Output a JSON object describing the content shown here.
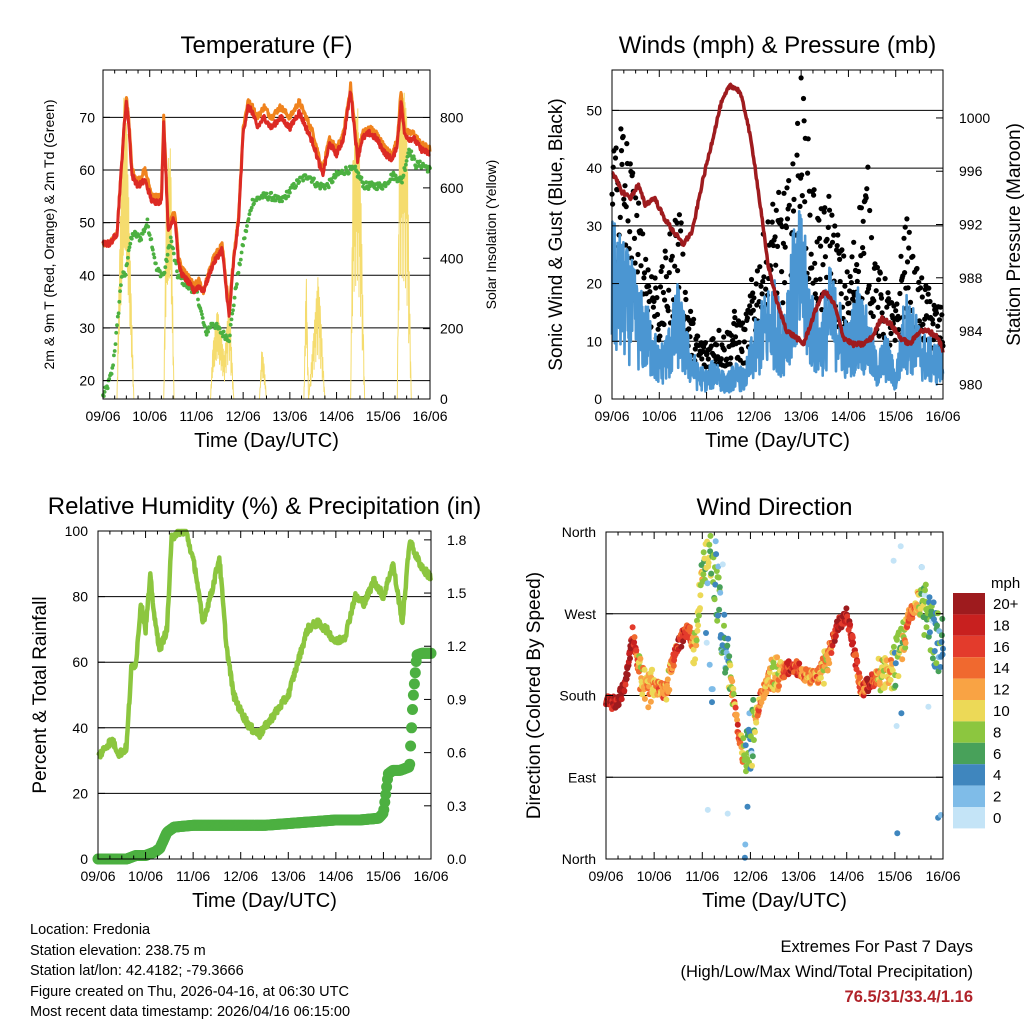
{
  "chart_data": [
    {
      "type": "line",
      "title": "Temperature (F)",
      "xlabel": "Time (Day/UTC)",
      "ylabel": "2m & 9m T (Red, Orange) & 2m Td (Green)",
      "ylabel_right": "Solar Insolation (Yellow)",
      "x_ticks": [
        "09/06",
        "10/06",
        "11/06",
        "12/06",
        "13/06",
        "14/06",
        "15/06",
        "16/06"
      ],
      "xlim": [
        0,
        7
      ],
      "ylim": [
        16.5,
        79
      ],
      "yticks": [
        20,
        30,
        40,
        50,
        60,
        70
      ],
      "ylim_right": [
        0,
        935
      ],
      "yticks_right": [
        0,
        200,
        400,
        600,
        800
      ],
      "colors": {
        "t2m": "#dc2a24",
        "t9m": "#f0831e",
        "td": "#4cb041",
        "solar": "#f5dc6e"
      },
      "series": [
        {
          "name": "2m T",
          "x": [
            0,
            0.15,
            0.3,
            0.45,
            0.5,
            0.55,
            0.62,
            0.75,
            0.9,
            1.05,
            1.25,
            1.3,
            1.4,
            1.5,
            1.55,
            1.62,
            1.7,
            1.8,
            1.95,
            2.05,
            2.15,
            2.35,
            2.55,
            2.7,
            2.8,
            2.9,
            3.0,
            3.1,
            3.2,
            3.3,
            3.45,
            3.6,
            3.8,
            4.0,
            4.2,
            4.3,
            4.5,
            4.7,
            4.85,
            5.0,
            5.15,
            5.3,
            5.45,
            5.55,
            5.7,
            5.85,
            6.05,
            6.2,
            6.3,
            6.38,
            6.45,
            6.55,
            6.65,
            6.8,
            7.0
          ],
          "values": [
            46,
            46,
            48,
            68,
            73,
            69,
            59,
            57,
            58,
            54,
            54,
            69,
            48,
            51,
            50,
            42,
            40,
            39,
            37,
            38,
            37,
            42,
            45,
            32,
            43,
            50,
            67,
            72,
            71,
            68,
            70,
            68,
            70,
            68,
            71,
            69,
            65,
            59,
            65,
            63,
            66,
            75,
            62,
            66,
            67,
            66,
            63,
            62,
            65,
            73,
            67,
            66,
            66,
            64,
            63
          ]
        },
        {
          "name": "9m T",
          "x": [
            0,
            0.15,
            0.3,
            0.45,
            0.5,
            0.55,
            0.62,
            0.75,
            0.9,
            1.05,
            1.25,
            1.3,
            1.4,
            1.5,
            1.55,
            1.62,
            1.7,
            1.8,
            1.95,
            2.05,
            2.15,
            2.35,
            2.55,
            2.7,
            2.8,
            2.9,
            3.0,
            3.1,
            3.2,
            3.3,
            3.45,
            3.6,
            3.8,
            4.0,
            4.2,
            4.3,
            4.5,
            4.7,
            4.85,
            5.0,
            5.15,
            5.3,
            5.45,
            5.55,
            5.7,
            5.85,
            6.05,
            6.2,
            6.3,
            6.38,
            6.45,
            6.55,
            6.65,
            6.8,
            7.0
          ],
          "values": [
            46,
            46,
            48,
            68,
            74,
            70,
            60,
            58,
            60,
            55,
            55,
            70,
            49,
            52,
            51,
            43,
            41,
            40,
            38,
            39,
            37,
            43,
            46,
            33,
            44,
            51,
            68,
            73,
            72,
            70,
            72,
            70,
            72,
            70,
            73,
            71,
            67,
            60,
            66,
            64,
            67,
            76,
            63,
            67,
            68,
            67,
            64,
            63,
            66,
            75,
            68,
            67,
            67,
            65,
            64
          ]
        },
        {
          "name": "2m Td",
          "x": [
            0,
            0.1,
            0.2,
            0.3,
            0.4,
            0.48,
            0.55,
            0.65,
            0.8,
            0.95,
            1.05,
            1.15,
            1.3,
            1.45,
            1.6,
            1.8,
            2.0,
            2.2,
            2.35,
            2.55,
            2.7,
            2.85,
            3.0,
            3.2,
            3.4,
            3.6,
            3.8,
            4.0,
            4.2,
            4.4,
            4.6,
            4.8,
            5.0,
            5.2,
            5.4,
            5.6,
            5.8,
            6.0,
            6.2,
            6.4,
            6.55,
            6.7,
            6.85,
            7.0
          ],
          "values": [
            17,
            19,
            22,
            30,
            40,
            40,
            45,
            48,
            47,
            50,
            46,
            41,
            40,
            47,
            40,
            38,
            37,
            29,
            31,
            29,
            28,
            38,
            46,
            54,
            55,
            55,
            54,
            56,
            58,
            59,
            57,
            57,
            59,
            60,
            60,
            57,
            57,
            57,
            59,
            58,
            64,
            61,
            61,
            60
          ]
        },
        {
          "name": "Solar Insolation",
          "axis": "right",
          "x": [
            0,
            0.3,
            0.35,
            0.45,
            0.5,
            0.58,
            0.66,
            0.72,
            1.3,
            1.36,
            1.45,
            1.52,
            2.3,
            2.35,
            2.45,
            2.6,
            2.7,
            2.8,
            3.35,
            3.4,
            3.45,
            3.5,
            4.3,
            4.35,
            4.4,
            4.6,
            4.65,
            4.75,
            5.3,
            5.35,
            5.45,
            5.52,
            5.6,
            6.3,
            6.35,
            6.45,
            6.5,
            6.6,
            7.0
          ],
          "values": [
            0,
            0,
            400,
            880,
            830,
            420,
            0,
            0,
            0,
            650,
            720,
            0,
            0,
            150,
            260,
            120,
            300,
            0,
            0,
            150,
            100,
            0,
            0,
            380,
            0,
            350,
            270,
            0,
            0,
            680,
            850,
            600,
            0,
            0,
            870,
            880,
            820,
            0,
            0
          ]
        }
      ]
    },
    {
      "type": "line",
      "title": "Winds (mph) & Pressure (mb)",
      "xlabel": "Time (Day/UTC)",
      "ylabel": "Sonic Wind & Gust (Blue, Black)",
      "ylabel_right": "Station Pressure (Maroon)",
      "x_ticks": [
        "09/06",
        "10/06",
        "11/06",
        "12/06",
        "13/06",
        "14/06",
        "15/06",
        "16/06"
      ],
      "xlim": [
        0,
        7
      ],
      "ylim": [
        0,
        57
      ],
      "yticks": [
        0,
        10,
        20,
        30,
        40,
        50
      ],
      "ylim_right": [
        978.9,
        1003.6
      ],
      "yticks_right": [
        980,
        984,
        988,
        992,
        996,
        1000
      ],
      "colors": {
        "wind": "#4b96d2",
        "gust": "#000000",
        "pressure": "#9e1b1e"
      },
      "series": [
        {
          "name": "Sonic Wind",
          "x": [
            0,
            0.2,
            0.4,
            0.6,
            0.8,
            1.0,
            1.2,
            1.4,
            1.6,
            1.8,
            2.0,
            2.2,
            2.4,
            2.6,
            2.8,
            3.0,
            3.2,
            3.4,
            3.6,
            3.8,
            4.0,
            4.2,
            4.4,
            4.6,
            4.8,
            5.0,
            5.2,
            5.4,
            5.6,
            5.8,
            6.0,
            6.2,
            6.4,
            6.6,
            6.8,
            7.0
          ],
          "values": [
            24,
            22,
            19,
            15,
            12,
            7,
            10,
            16,
            9,
            5,
            4,
            6,
            3,
            5,
            4,
            10,
            14,
            17,
            12,
            22,
            26,
            16,
            11,
            18,
            14,
            10,
            16,
            12,
            6,
            9,
            4,
            15,
            12,
            9,
            8,
            7
          ]
        },
        {
          "name": "Gust",
          "x": [
            0,
            0.2,
            0.4,
            0.6,
            0.8,
            1.0,
            1.2,
            1.4,
            1.6,
            1.8,
            2.0,
            2.2,
            2.4,
            2.6,
            2.8,
            3.0,
            3.2,
            3.4,
            3.6,
            3.8,
            4.0,
            4.2,
            4.4,
            4.6,
            4.8,
            5.0,
            5.2,
            5.4,
            5.6,
            5.8,
            6.0,
            6.2,
            6.4,
            6.6,
            6.8,
            7.0
          ],
          "values": [
            36,
            40,
            33,
            25,
            20,
            16,
            22,
            28,
            14,
            9,
            8,
            10,
            9,
            12,
            10,
            18,
            22,
            27,
            28,
            30,
            44,
            32,
            25,
            28,
            22,
            17,
            26,
            32,
            18,
            16,
            12,
            26,
            18,
            16,
            14,
            12
          ]
        },
        {
          "name": "Station Pressure",
          "axis": "right",
          "x": [
            0,
            0.2,
            0.4,
            0.55,
            0.7,
            0.9,
            1.1,
            1.3,
            1.5,
            1.7,
            1.9,
            2.1,
            2.3,
            2.5,
            2.7,
            2.85,
            3.0,
            3.15,
            3.3,
            3.5,
            3.7,
            3.9,
            4.05,
            4.2,
            4.35,
            4.5,
            4.7,
            4.9,
            5.1,
            5.3,
            5.5,
            5.7,
            5.9,
            6.1,
            6.3,
            6.5,
            6.7,
            6.9,
            7.0
          ],
          "values": [
            996,
            994.5,
            994,
            995,
            993.5,
            994,
            992.5,
            991.5,
            990.5,
            991.5,
            995,
            998,
            1001,
            1002.5,
            1002,
            1000,
            997,
            993,
            989,
            986,
            984,
            983.5,
            983,
            984.5,
            986,
            987,
            986,
            983.5,
            983,
            983,
            983.5,
            985,
            984.5,
            983.5,
            983,
            984,
            984,
            983.5,
            982.5
          ]
        }
      ]
    },
    {
      "type": "line",
      "title": "Relative Humidity (%) & Precipitation (in)",
      "xlabel": "Time (Day/UTC)",
      "ylabel": "Percent & Total Rainfall",
      "x_ticks": [
        "09/06",
        "10/06",
        "11/06",
        "12/06",
        "13/06",
        "14/06",
        "15/06",
        "16/06"
      ],
      "xlim": [
        0,
        7
      ],
      "ylim": [
        0,
        100
      ],
      "yticks": [
        0,
        20,
        40,
        60,
        80,
        100
      ],
      "ylim_right": [
        0,
        1.85
      ],
      "yticks_right": [
        "0.0",
        "0.3",
        "0.6",
        "0.9",
        "1.2",
        "1.5",
        "1.8"
      ],
      "colors": {
        "rh": "#8cc63f",
        "precip": "#4cb041"
      },
      "series": [
        {
          "name": "Relative Humidity",
          "x": [
            0,
            0.2,
            0.3,
            0.45,
            0.6,
            0.7,
            0.8,
            0.9,
            1.0,
            1.1,
            1.2,
            1.3,
            1.45,
            1.55,
            1.7,
            1.85,
            2.05,
            2.2,
            2.4,
            2.55,
            2.7,
            2.85,
            3.0,
            3.2,
            3.4,
            3.6,
            3.8,
            4.0,
            4.2,
            4.4,
            4.6,
            4.8,
            5.0,
            5.2,
            5.4,
            5.6,
            5.8,
            6.0,
            6.2,
            6.4,
            6.55,
            6.7,
            6.85,
            7.0
          ],
          "values": [
            31,
            35,
            36,
            32,
            34,
            58,
            60,
            78,
            70,
            86,
            72,
            64,
            70,
            98,
            100,
            100,
            88,
            72,
            82,
            92,
            65,
            50,
            45,
            40,
            38,
            42,
            46,
            50,
            60,
            70,
            72,
            70,
            66,
            68,
            80,
            78,
            85,
            80,
            90,
            72,
            97,
            92,
            88,
            86
          ]
        },
        {
          "name": "Total Precipitation",
          "axis": "right",
          "x": [
            0,
            0.6,
            0.8,
            1.0,
            1.2,
            1.3,
            1.45,
            1.6,
            2.0,
            2.5,
            3.0,
            3.5,
            4.0,
            4.5,
            5.0,
            5.5,
            5.9,
            6.0,
            6.1,
            6.2,
            6.35,
            6.55,
            6.62,
            6.7,
            6.8,
            7.0
          ],
          "values": [
            0,
            0,
            0.02,
            0.02,
            0.04,
            0.06,
            0.15,
            0.18,
            0.19,
            0.19,
            0.19,
            0.19,
            0.2,
            0.21,
            0.22,
            0.22,
            0.23,
            0.26,
            0.48,
            0.5,
            0.5,
            0.52,
            0.89,
            1.15,
            1.16,
            1.16
          ]
        }
      ]
    },
    {
      "type": "scatter",
      "title": "Wind Direction",
      "xlabel": "Time (Day/UTC)",
      "ylabel": "Direction (Colored By Speed)",
      "x_ticks": [
        "09/06",
        "10/06",
        "11/06",
        "12/06",
        "13/06",
        "14/06",
        "15/06",
        "16/06"
      ],
      "xlim": [
        0,
        7
      ],
      "ylim": [
        0,
        360
      ],
      "yticks": [
        "North",
        "East",
        "South",
        "West",
        "North"
      ],
      "legend": {
        "title": "mph",
        "labels": [
          "20+",
          "18",
          "16",
          "14",
          "12",
          "10",
          "8",
          "6",
          "4",
          "2",
          "0"
        ],
        "colors": [
          "#9e1b1e",
          "#c8201f",
          "#e33b2c",
          "#f0692f",
          "#f9a344",
          "#ecd957",
          "#8cc63f",
          "#48a15a",
          "#3f86be",
          "#7fbce8",
          "#c4e4f7"
        ]
      },
      "series": [
        {
          "name": "Direction",
          "x": [
            0,
            0.2,
            0.35,
            0.45,
            0.55,
            0.7,
            0.85,
            1.0,
            1.2,
            1.3,
            1.5,
            1.7,
            1.85,
            2.0,
            2.15,
            2.3,
            2.5,
            2.75,
            2.9,
            3.0,
            3.2,
            3.4,
            3.6,
            3.8,
            4.0,
            4.2,
            4.4,
            4.6,
            4.8,
            5.0,
            5.1,
            5.3,
            5.5,
            5.7,
            5.9,
            6.0,
            6.2,
            6.3,
            6.5,
            6.7,
            6.9
          ],
          "values": [
            172,
            172,
            185,
            208,
            250,
            205,
            185,
            190,
            185,
            202,
            235,
            255,
            230,
            320,
            335,
            300,
            225,
            140,
            110,
            130,
            175,
            200,
            205,
            210,
            210,
            200,
            200,
            220,
            255,
            270,
            245,
            185,
            195,
            205,
            200,
            215,
            245,
            270,
            280,
            265,
            235
          ],
          "speeds": [
            18,
            19,
            20,
            19,
            18,
            11,
            12,
            12,
            13,
            11,
            17,
            16,
            10,
            9,
            8,
            6,
            4,
            17,
            6,
            5,
            14,
            12,
            11,
            17,
            15,
            12,
            13,
            10,
            19,
            18,
            18,
            14,
            18,
            10,
            13,
            6,
            10,
            16,
            10,
            6,
            5
          ]
        }
      ]
    }
  ],
  "info": {
    "location": "Location: Fredonia",
    "elevation": "Station elevation: 238.75 m",
    "latlon": "Station lat/lon: 42.4182; -79.3666",
    "created": "Figure created on Thu, 2026-04-16, at 06:30 UTC",
    "timestamp": "Most recent data timestamp: 2026/04/16 06:15:00"
  },
  "extremes": {
    "title": "Extremes For Past 7 Days",
    "subtitle": "(High/Low/Max Wind/Total Precipitation)",
    "values": "76.5/31/33.4/1.16"
  }
}
